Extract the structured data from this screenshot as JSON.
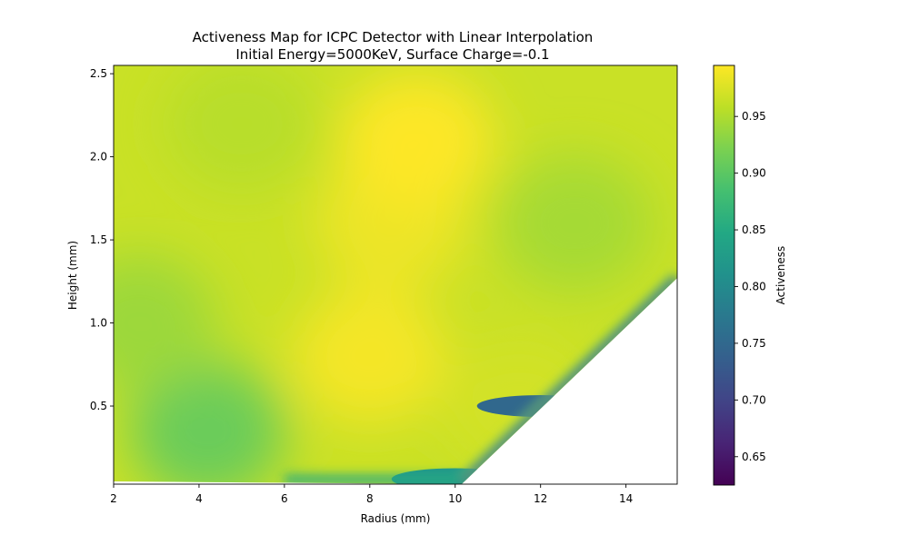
{
  "chart_data": {
    "type": "heatmap",
    "title": "Activeness Map for ICPC Detector with Linear Interpolation",
    "subtitle": "Initial Energy=5000KeV, Surface Charge=-0.1",
    "xlabel": "Radius (mm)",
    "ylabel": "Height (mm)",
    "xlim": [
      2.0,
      15.2
    ],
    "ylim": [
      0.03,
      2.55
    ],
    "xticks": [
      "2",
      "4",
      "6",
      "8",
      "10",
      "12",
      "14"
    ],
    "yticks": [
      "0.5",
      "1.0",
      "1.5",
      "2.0",
      "2.5"
    ],
    "colormap": "viridis",
    "colorbar": {
      "label": "Activeness",
      "range": [
        0.625,
        0.995
      ],
      "ticks": [
        "0.65",
        "0.70",
        "0.75",
        "0.80",
        "0.85",
        "0.90",
        "0.95"
      ]
    },
    "boundary": {
      "description": "data present left of line from (10.15, 0.03) to (15.2, 1.27); below that line is empty",
      "points": [
        [
          10.15,
          0.03
        ],
        [
          15.2,
          1.27
        ]
      ]
    },
    "regions": [
      {
        "r": 4.2,
        "h": 0.35,
        "value": 0.91
      },
      {
        "r": 2.6,
        "h": 1.0,
        "value": 0.94
      },
      {
        "r": 5.0,
        "h": 2.2,
        "value": 0.955
      },
      {
        "r": 8.0,
        "h": 0.8,
        "value": 0.99
      },
      {
        "r": 8.5,
        "h": 1.6,
        "value": 0.985
      },
      {
        "r": 9.1,
        "h": 2.1,
        "value": 0.995
      },
      {
        "r": 12.8,
        "h": 1.6,
        "value": 0.945
      },
      {
        "r": 11.5,
        "h": 0.5,
        "value": 0.97
      },
      {
        "r": 10.0,
        "h": 0.06,
        "value": 0.82
      },
      {
        "r": 12.0,
        "h": 0.5,
        "value": 0.75
      }
    ]
  }
}
